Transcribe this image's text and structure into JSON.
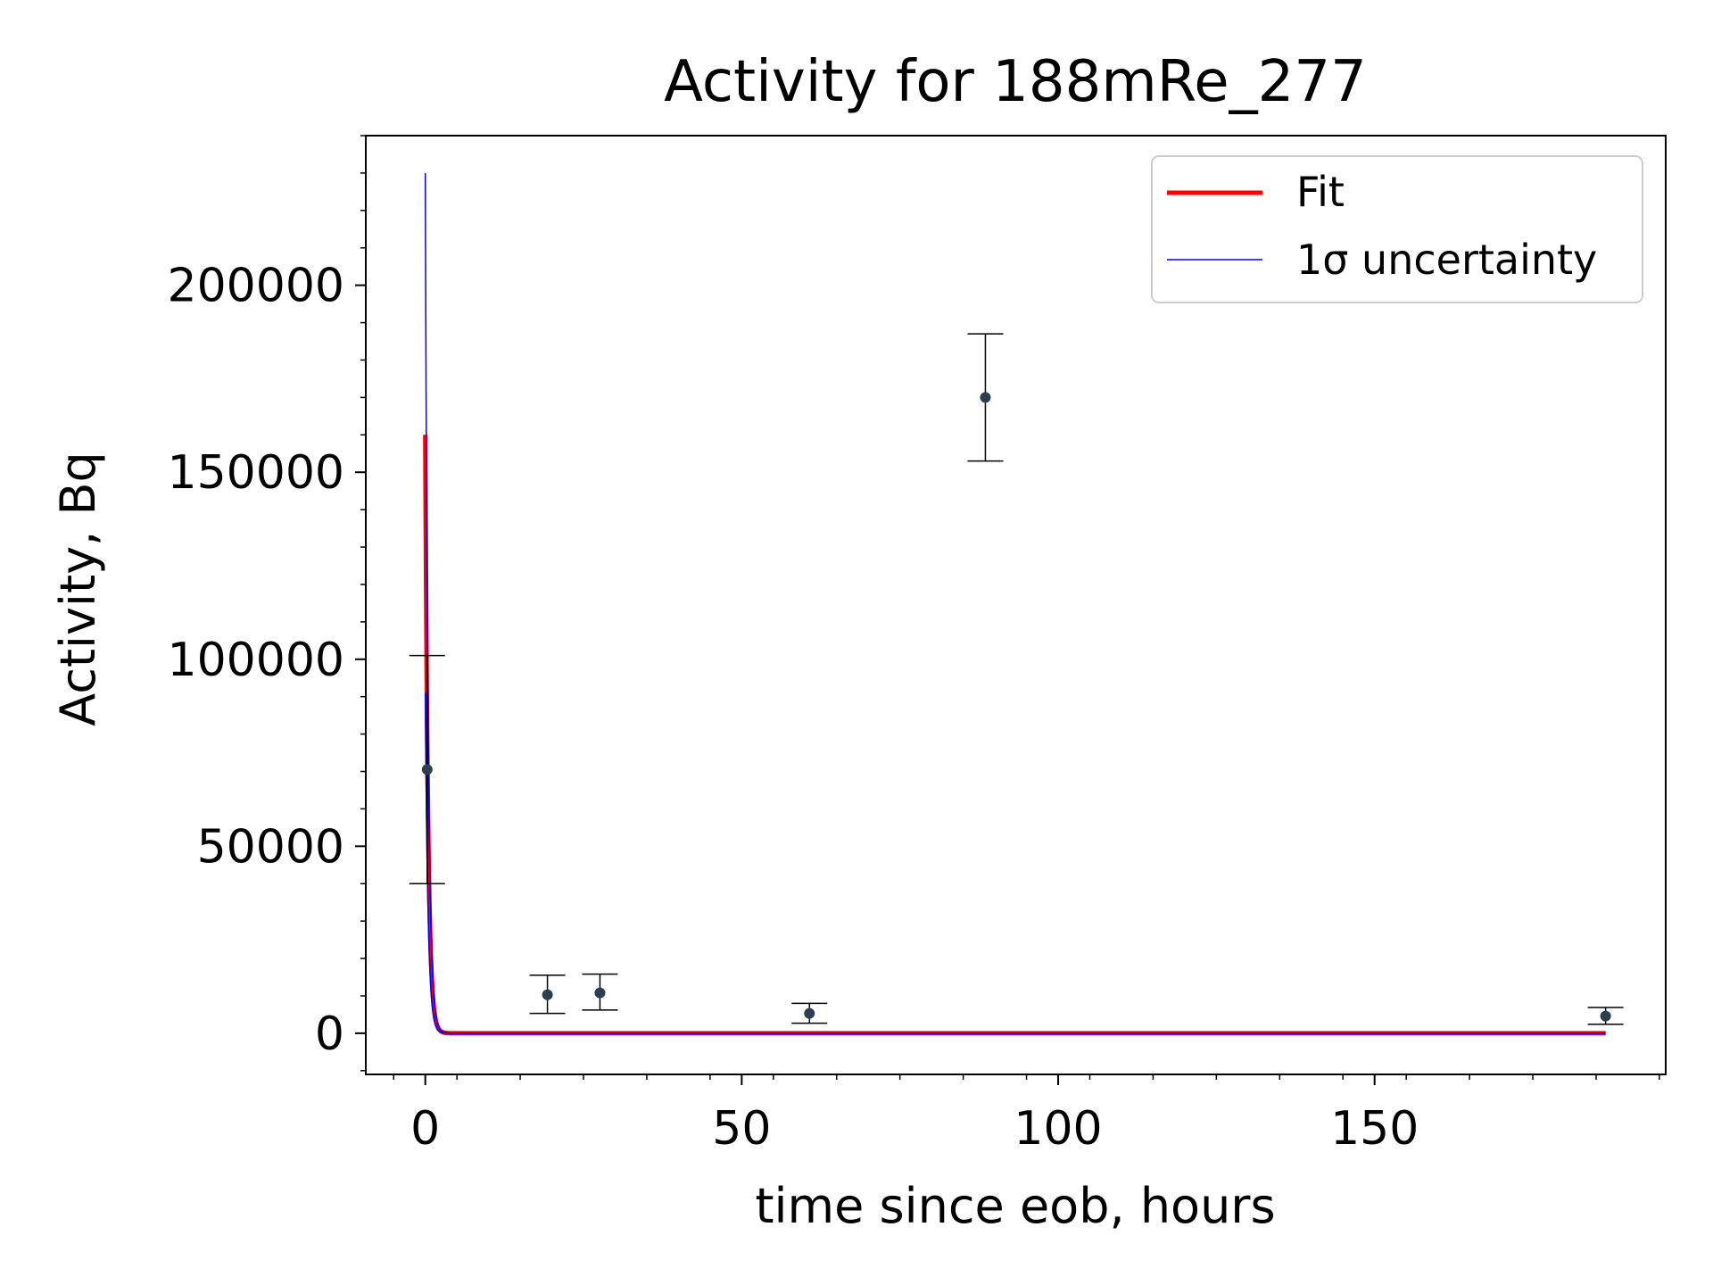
{
  "chart_data": {
    "type": "scatter",
    "title": "Activity for 188mRe_277",
    "xlabel": "time since eob, hours",
    "ylabel": "Activity, Bq",
    "xlim": [
      -9.4,
      196
    ],
    "ylim": [
      -11000,
      240000
    ],
    "x_ticks": [
      0,
      50,
      100,
      150
    ],
    "y_ticks": [
      0,
      50000,
      100000,
      150000,
      200000
    ],
    "x_tick_labels": [
      "0",
      "50",
      "100",
      "150"
    ],
    "y_tick_labels": [
      "0",
      "50000",
      "100000",
      "150000",
      "200000"
    ],
    "grid": false,
    "legend_position": "top-right",
    "legend": [
      {
        "label": "Fit",
        "color": "#ff0000"
      },
      {
        "label": "1σ uncertainty",
        "color": "#0000ff"
      }
    ],
    "measurements": {
      "color": "#2c3e50",
      "points": [
        {
          "x": 0.3,
          "y": 70500,
          "yerr_low": 30500,
          "yerr_high": 30500
        },
        {
          "x": 19.3,
          "y": 10300,
          "yerr_low": 5000,
          "yerr_high": 5200
        },
        {
          "x": 27.6,
          "y": 10800,
          "yerr_low": 4600,
          "yerr_high": 5000
        },
        {
          "x": 60.7,
          "y": 5300,
          "yerr_low": 2600,
          "yerr_high": 2700
        },
        {
          "x": 88.5,
          "y": 170000,
          "yerr_low": 17000,
          "yerr_high": 17000
        },
        {
          "x": 186.5,
          "y": 4600,
          "yerr_low": 2200,
          "yerr_high": 2300
        }
      ]
    },
    "fit": {
      "name": "Fit",
      "color": "#ff0000",
      "A0": 160000,
      "half_life_hours": 0.3,
      "x_range": [
        0,
        186.5
      ]
    },
    "uncertainty": {
      "name": "1σ uncertainty",
      "color": "#0000ff",
      "upper_A0": 230000,
      "lower_A0": 91000,
      "half_life_hours": 0.3
    }
  }
}
